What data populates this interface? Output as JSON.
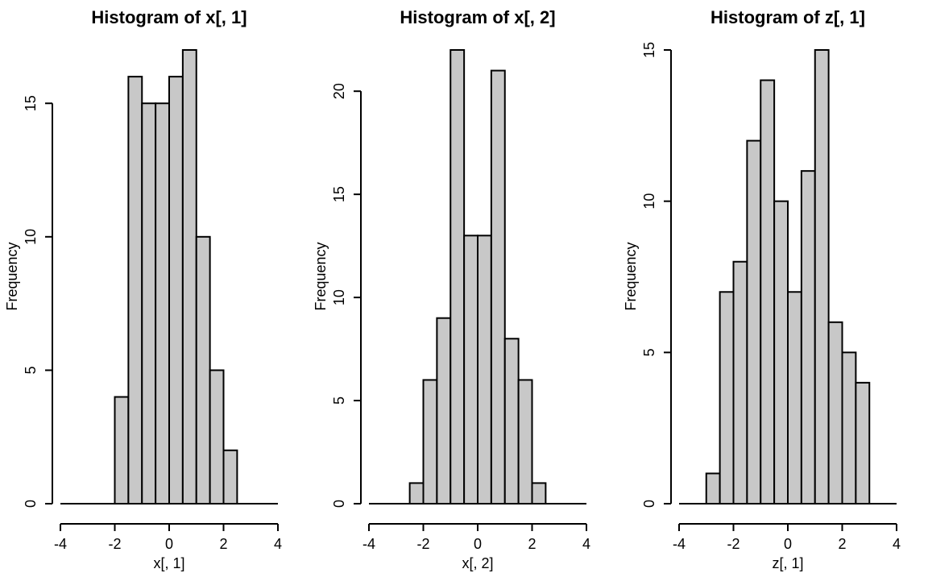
{
  "chart_data": [
    {
      "type": "bar",
      "title": "Histogram of x[, 1]",
      "xlabel": "x[, 1]",
      "ylabel": "Frequency",
      "xlim": [
        -4,
        4
      ],
      "ylim": [
        0,
        17
      ],
      "xticks": [
        "-4",
        "-2",
        "0",
        "2",
        "4"
      ],
      "yticks": [
        "0",
        "5",
        "10",
        "15"
      ],
      "breaks": [
        -2.0,
        -1.5,
        -1.0,
        -0.5,
        0.0,
        0.5,
        1.0,
        1.5,
        2.0,
        2.5
      ],
      "counts": [
        4,
        16,
        15,
        15,
        16,
        17,
        10,
        5,
        2
      ],
      "bar_color": "#c8c8c8"
    },
    {
      "type": "bar",
      "title": "Histogram of x[, 2]",
      "xlabel": "x[, 2]",
      "ylabel": "Frequency",
      "xlim": [
        -4,
        4
      ],
      "ylim": [
        0,
        22
      ],
      "xticks": [
        "-4",
        "-2",
        "0",
        "2",
        "4"
      ],
      "yticks": [
        "0",
        "5",
        "10",
        "15",
        "20"
      ],
      "breaks": [
        -2.5,
        -2.0,
        -1.5,
        -1.0,
        -0.5,
        0.0,
        0.5,
        1.0,
        1.5,
        2.0,
        2.5
      ],
      "counts": [
        1,
        6,
        9,
        22,
        13,
        13,
        21,
        8,
        6,
        1
      ],
      "bar_color": "#c8c8c8"
    },
    {
      "type": "bar",
      "title": "Histogram of z[, 1]",
      "xlabel": "z[, 1]",
      "ylabel": "Frequency",
      "xlim": [
        -4,
        4
      ],
      "ylim": [
        0,
        15
      ],
      "xticks": [
        "-4",
        "-2",
        "0",
        "2",
        "4"
      ],
      "yticks": [
        "0",
        "5",
        "10",
        "15"
      ],
      "breaks": [
        -3.0,
        -2.5,
        -2.0,
        -1.5,
        -1.0,
        -0.5,
        0.0,
        0.5,
        1.0,
        1.5,
        2.0,
        2.5,
        3.0
      ],
      "counts": [
        1,
        7,
        8,
        12,
        14,
        10,
        7,
        11,
        15,
        6,
        5,
        4
      ],
      "bar_color": "#c8c8c8"
    }
  ]
}
